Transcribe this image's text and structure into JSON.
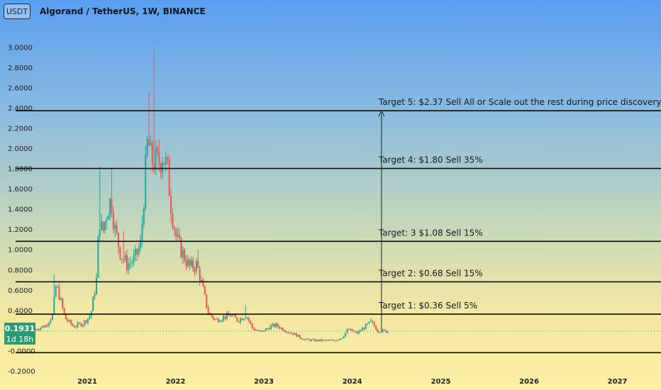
{
  "header": {
    "currency_chip": "USDT",
    "title": "Algorand / TetherUS, 1W, BINANCE"
  },
  "price_tag": {
    "price": "0.1931",
    "countdown": "1d 18h"
  },
  "chart_data": {
    "type": "candlestick",
    "interval": "1W",
    "y_axis": {
      "range": [
        -0.2,
        3.1
      ],
      "ticks": [
        "3.0000",
        "2.8000",
        "2.6000",
        "2.4000",
        "2.2000",
        "2.0000",
        "1.8000",
        "1.6000",
        "1.4000",
        "1.2000",
        "1.0000",
        "0.8000",
        "0.6000",
        "0.4000",
        "0.2000",
        "-0.0000",
        "-0.2000"
      ],
      "tick_values": [
        3.0,
        2.8,
        2.6,
        2.4,
        2.2,
        2.0,
        1.8,
        1.6,
        1.4,
        1.2,
        1.0,
        0.8,
        0.6,
        0.4,
        0.2,
        0.0,
        -0.2
      ]
    },
    "x_axis": {
      "range": [
        "2020-06-01",
        "2027-06-30"
      ],
      "ticks": [
        "2021",
        "2022",
        "2023",
        "2024",
        "2025",
        "2026",
        "2027"
      ],
      "tick_dates": [
        "2021-01-01",
        "2022-01-01",
        "2023-01-01",
        "2024-01-01",
        "2025-01-01",
        "2026-01-01",
        "2027-01-01"
      ]
    },
    "colors": {
      "up": "#26a69a",
      "down": "#ef5350",
      "line": "#0d0d0d"
    },
    "horizontal_lines": [
      2.37,
      1.8,
      1.08,
      0.68,
      0.36,
      -0.02
    ],
    "price_anchors": [
      [
        "2020-06-01",
        0.21
      ],
      [
        "2020-07-15",
        0.25
      ],
      [
        "2020-08-10",
        0.35
      ],
      [
        "2020-08-25",
        0.65
      ],
      [
        "2020-09-10",
        0.52
      ],
      [
        "2020-10-01",
        0.32
      ],
      [
        "2020-11-05",
        0.24
      ],
      [
        "2020-12-15",
        0.27
      ],
      [
        "2021-01-15",
        0.35
      ],
      [
        "2021-02-08",
        0.7
      ],
      [
        "2021-02-20",
        1.32
      ],
      [
        "2021-03-05",
        1.15
      ],
      [
        "2021-03-25",
        1.4
      ],
      [
        "2021-04-10",
        1.5
      ],
      [
        "2021-04-25",
        1.2
      ],
      [
        "2021-05-20",
        0.95
      ],
      [
        "2021-06-15",
        0.85
      ],
      [
        "2021-07-15",
        0.9
      ],
      [
        "2021-08-10",
        1.05
      ],
      [
        "2021-08-25",
        1.6
      ],
      [
        "2021-09-08",
        2.1
      ],
      [
        "2021-09-20",
        1.9
      ],
      [
        "2021-10-20",
        1.85
      ],
      [
        "2021-11-10",
        1.95
      ],
      [
        "2021-11-30",
        1.75
      ],
      [
        "2021-12-15",
        1.4
      ],
      [
        "2022-01-05",
        1.1
      ],
      [
        "2022-02-01",
        0.95
      ],
      [
        "2022-03-01",
        0.82
      ],
      [
        "2022-03-30",
        0.85
      ],
      [
        "2022-04-20",
        0.65
      ],
      [
        "2022-05-15",
        0.38
      ],
      [
        "2022-06-15",
        0.3
      ],
      [
        "2022-07-15",
        0.33
      ],
      [
        "2022-08-15",
        0.35
      ],
      [
        "2022-09-15",
        0.3
      ],
      [
        "2022-10-20",
        0.35
      ],
      [
        "2022-11-15",
        0.22
      ],
      [
        "2022-12-20",
        0.18
      ],
      [
        "2023-01-30",
        0.24
      ],
      [
        "2023-02-20",
        0.25
      ],
      [
        "2023-03-30",
        0.2
      ],
      [
        "2023-05-01",
        0.17
      ],
      [
        "2023-06-15",
        0.11
      ],
      [
        "2023-08-01",
        0.1
      ],
      [
        "2023-09-15",
        0.1
      ],
      [
        "2023-10-20",
        0.1
      ],
      [
        "2023-11-20",
        0.13
      ],
      [
        "2023-12-15",
        0.21
      ],
      [
        "2024-01-20",
        0.17
      ],
      [
        "2024-03-01",
        0.25
      ],
      [
        "2024-03-20",
        0.28
      ],
      [
        "2024-04-15",
        0.2
      ],
      [
        "2024-05-20",
        0.19
      ]
    ],
    "peaks": [
      [
        "2020-08-20",
        0.75
      ],
      [
        "2021-02-22",
        1.82
      ],
      [
        "2021-04-15",
        1.8
      ],
      [
        "2021-06-01",
        1.18
      ],
      [
        "2021-09-12",
        2.55
      ],
      [
        "2021-10-03",
        2.98
      ],
      [
        "2021-12-01",
        1.92
      ],
      [
        "2022-04-01",
        1.0
      ],
      [
        "2022-10-20",
        0.45
      ],
      [
        "2024-03-15",
        0.32
      ]
    ],
    "last_price_date": "2024-05-28",
    "annotations": [
      {
        "text": "Target 5:  $2.37 Sell All or Scale out the rest during price discovery.",
        "x": "2024-05-01",
        "y": 2.37
      },
      {
        "text": "Target 4: $1.80 Sell 35%",
        "x": "2024-05-01",
        "y": 1.8
      },
      {
        "text": "Target: 3 $1.08 Sell 15%",
        "x": "2024-05-01",
        "y": 1.08
      },
      {
        "text": "Target 2: $0.68 Sell 15%",
        "x": "2024-05-01",
        "y": 0.68
      },
      {
        "text": "Target 1: $0.36 Sell 5%",
        "x": "2024-05-01",
        "y": 0.36
      }
    ],
    "arrow": {
      "x": "2024-05-01",
      "from": 0.19,
      "to": 2.37
    }
  }
}
